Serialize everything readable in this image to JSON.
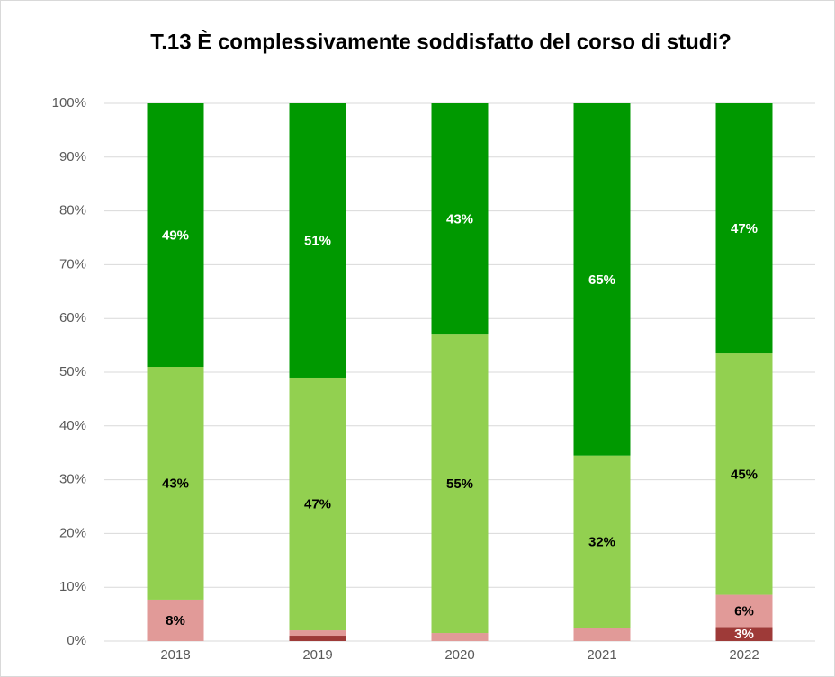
{
  "chart_data": {
    "type": "stacked_bar",
    "title": "T.13 È complessivamente soddisfatto del corso di studi?",
    "categories": [
      "2018",
      "2019",
      "2020",
      "2021",
      "2022"
    ],
    "series": [
      {
        "color": "#9e3a38",
        "label_color": "#ffffff",
        "values": [
          0,
          1,
          0,
          0,
          2.6
        ],
        "value_labels": [
          null,
          null,
          null,
          null,
          "3%"
        ]
      },
      {
        "color": "#e19a98",
        "label_color": "#000000",
        "values": [
          7.7,
          1,
          1.5,
          2.5,
          6.0
        ],
        "value_labels": [
          "8%",
          null,
          null,
          null,
          "6%"
        ]
      },
      {
        "color": "#92d050",
        "label_color": "#000000",
        "values": [
          43.3,
          47,
          55.5,
          32,
          44.9
        ],
        "value_labels": [
          "43%",
          "47%",
          "55%",
          "32%",
          "45%"
        ]
      },
      {
        "color": "#009900",
        "label_color": "#ffffff",
        "values": [
          49,
          51,
          43,
          65.5,
          46.5
        ],
        "value_labels": [
          "49%",
          "51%",
          "43%",
          "65%",
          "47%"
        ]
      }
    ],
    "ylim": [
      0,
      100
    ],
    "yticks": [
      {
        "value": 0,
        "label": "0%"
      },
      {
        "value": 10,
        "label": "10%"
      },
      {
        "value": 20,
        "label": "20%"
      },
      {
        "value": 30,
        "label": "30%"
      },
      {
        "value": 40,
        "label": "40%"
      },
      {
        "value": 50,
        "label": "50%"
      },
      {
        "value": 60,
        "label": "60%"
      },
      {
        "value": 70,
        "label": "70%"
      },
      {
        "value": 80,
        "label": "80%"
      },
      {
        "value": 90,
        "label": "90%"
      },
      {
        "value": 100,
        "label": "100%"
      }
    ],
    "grid": true
  }
}
